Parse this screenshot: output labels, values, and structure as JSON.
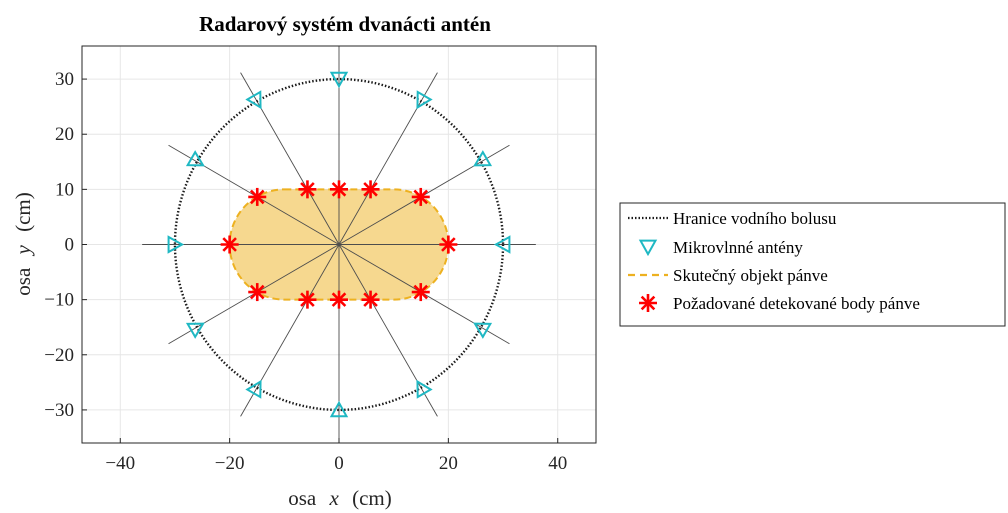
{
  "chart_data": {
    "type": "scatter",
    "title": "Radarový systém dvanácti antén",
    "xlabel_prefix": "osa",
    "xlabel_var": "x",
    "xlabel_unit": "(cm)",
    "ylabel_prefix": "osa",
    "ylabel_var": "y",
    "ylabel_unit": "(cm)",
    "xlim": [
      -47,
      47
    ],
    "ylim": [
      -36,
      36
    ],
    "xticks": [
      -40,
      -20,
      0,
      20,
      40
    ],
    "yticks": [
      -30,
      -20,
      -10,
      0,
      10,
      20,
      30
    ],
    "grid": true,
    "legend_position": "outside-right",
    "bolus_radius": 30,
    "ray_length": 36,
    "antennas": {
      "count": 12,
      "radius": 30,
      "angles_deg": [
        90,
        60,
        30,
        0,
        -30,
        -60,
        -90,
        -120,
        -150,
        180,
        150,
        120
      ]
    },
    "pelvis_object": {
      "shape": "stadium",
      "x_range": [
        -20,
        20
      ],
      "y_range": [
        -10,
        10
      ],
      "straight_half_length": 10,
      "cap_radius": 10
    },
    "detected_points": {
      "x": [
        0,
        5.77,
        14.95,
        20,
        14.95,
        5.77,
        0,
        -5.77,
        -14.95,
        -20,
        -14.95,
        -5.77
      ],
      "y": [
        10,
        10,
        8.63,
        0,
        -8.63,
        -10,
        -10,
        -10,
        -8.63,
        0,
        8.63,
        10
      ]
    },
    "series": [
      {
        "name": "Hranice vodního bolusu",
        "color": "#1a1a1a",
        "style": "dotted"
      },
      {
        "name": "Mikrovlnné antény",
        "color": "#1fb8c3",
        "style": "triangle-down"
      },
      {
        "name": "Skutečný objekt pánve",
        "color": "#edb120",
        "style": "dashed"
      },
      {
        "name": "Požadované detekované body pánve",
        "color": "#ff0000",
        "style": "asterisk"
      }
    ]
  }
}
